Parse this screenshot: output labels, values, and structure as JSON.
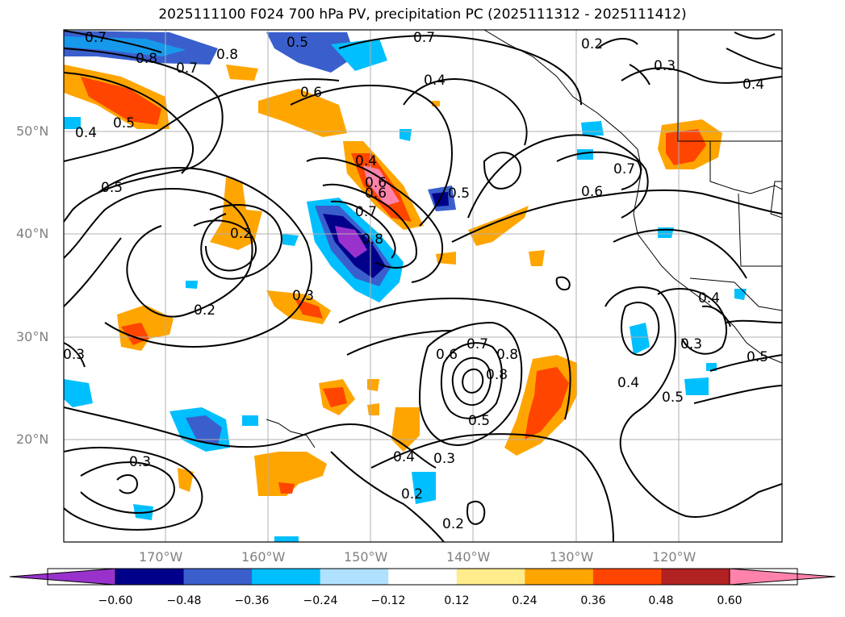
{
  "title": "2025111100 F024 700 hPa PV, precipitation PC (2025111312 - 2025111412)",
  "lat_labels": [
    "50°N",
    "40°N",
    "30°N",
    "20°N"
  ],
  "lon_labels": [
    "170°W",
    "160°W",
    "150°W",
    "140°W",
    "130°W",
    "120°W"
  ],
  "contour_labels": [
    "0.7",
    "0.8",
    "0.7",
    "0.8",
    "0.6",
    "0.4",
    "0.5",
    "0.5",
    "0.4",
    "0.6",
    "0.5",
    "0.4",
    "0.8",
    "0.7",
    "0.2",
    "0.3",
    "0.4",
    "0.5",
    "0.6",
    "0.7",
    "0.2",
    "0.3",
    "0.2",
    "0.3",
    "0.6",
    "0.7",
    "0.8",
    "0.5",
    "0.4",
    "0.3",
    "0.2",
    "0.2",
    "0.3",
    "0.4",
    "0.5",
    "0.3",
    "0.4",
    "0.5",
    "0.7",
    "0.6",
    "0.8"
  ],
  "colorbar": {
    "colors": [
      "#9932CC",
      "#00008B",
      "#3A5FCD",
      "#00BFFF",
      "#B0E2FF",
      "#FFFFFF",
      "#FFEC8B",
      "#FFA500",
      "#FF4500",
      "#B22222",
      "#FF82AB"
    ],
    "labels": [
      "−0.60",
      "−0.48",
      "−0.36",
      "−0.24",
      "−0.12",
      "0.12",
      "0.24",
      "0.36",
      "0.48",
      "0.60"
    ]
  }
}
